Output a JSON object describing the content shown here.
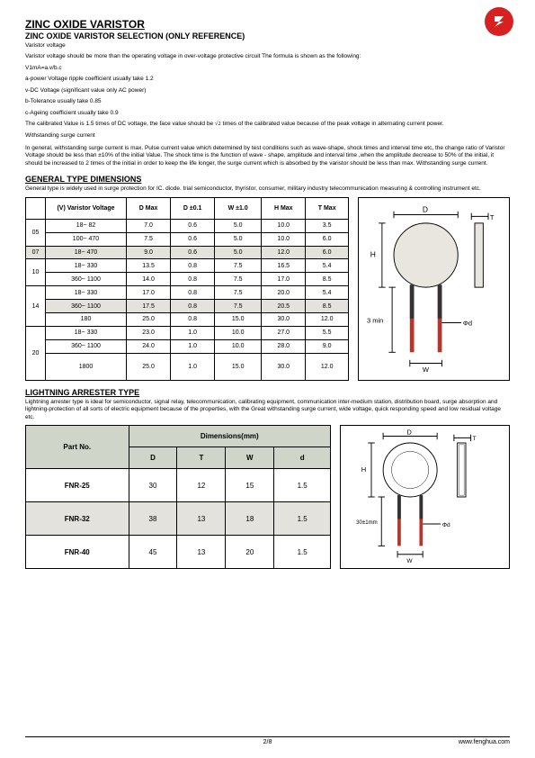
{
  "header": {
    "title": "ZINC OXIDE VARISTOR",
    "subtitle": "ZINC OXIDE VARISTOR SELECTION (ONLY REFERENCE)",
    "label1": "Varistor voltage"
  },
  "intro": {
    "p1": "Varistor voltage should be more than the operating voltage in over-voltage protective circuit The formula is shown as the following:",
    "formula": "V1mA=a.v/b.c",
    "l1": "a-power Voltage ripple coefficient usually take 1.2",
    "l2": "v-DC Voltage (significant value only AC power)",
    "l3": "b-Tolerance usually take 0.85",
    "l4": "c-Ageing coefficient usually take 0.9",
    "p2a": "The calibrated Value is 1.5 times of DC voltage, the face value should be ",
    "p2sqrt": "√2",
    "p2b": " times of the calibrated value because of the peak voltage in alternating current power.",
    "p3": "Withstanding surge current",
    "p4": "In general, withstanding surge current is max. Pulse current value which determined by test conditions such as wave-shape, shock times and interval time etc, the change ratio of Varistor Voltage should be less than ±10% of the initial Value. The shock time is the function of wave - shape, amplitude and interval time ,when the amplitude decrease to 50% of the initial, it should be increased to 2 times of the initial in order to keep the life longer, the surge current which is absorbed by the varistor should be less than max. Withstanding surge current."
  },
  "section1": {
    "title": "GENERAL TYPE DIMENSIONS",
    "desc": "General type is widely used in surge protection for IC. diode. trial semiconductor, thyristor, consumer, military industry telecommunication measuring & controlling instrument etc."
  },
  "table1": {
    "headers": [
      "(V) Varistor Voltage",
      "D Max",
      "D ±0.1",
      "W ±1.0",
      "H Max",
      "T Max"
    ],
    "groups": [
      {
        "label": "05",
        "rows": [
          {
            "v": "18~ 82",
            "d": "7.0",
            "dpm": "0.6",
            "w": "5.0",
            "h": "10.0",
            "t": "3.5"
          },
          {
            "v": "100~ 470",
            "d": "7.5",
            "dpm": "0.6",
            "w": "5.0",
            "h": "10.0",
            "t": "6.0"
          }
        ]
      },
      {
        "label": "07",
        "shade": true,
        "rows": [
          {
            "v": "18~ 470",
            "d": "9.0",
            "dpm": "0.6",
            "w": "5.0",
            "h": "12.0",
            "t": "6.0"
          }
        ]
      },
      {
        "label": "10",
        "rows": [
          {
            "v": "18~ 330",
            "d": "13.5",
            "dpm": "0.8",
            "w": "7.5",
            "h": "16.5",
            "t": "5.4"
          },
          {
            "v": "360~ 1100",
            "d": "14.0",
            "dpm": "0.8",
            "w": "7.5",
            "h": "17.0",
            "t": "8.5"
          }
        ]
      },
      {
        "label": "14",
        "rows": [
          {
            "v": "18~ 330",
            "d": "17.0",
            "dpm": "0.8",
            "w": "7.5",
            "h": "20.0",
            "t": "5.4"
          },
          {
            "v": "360~ 1100",
            "d": "17.5",
            "dpm": "0.8",
            "w": "7.5",
            "h": "20.5",
            "t": "8.5",
            "shade": true
          },
          {
            "v": "180",
            "d": "25.0",
            "dpm": "0.8",
            "w": "15.0",
            "h": "30.0",
            "t": "12.0"
          }
        ]
      },
      {
        "label": "20",
        "rows": [
          {
            "v": "18~ 330",
            "d": "23.0",
            "dpm": "1.0",
            "w": "10.0",
            "h": "27.0",
            "t": "5.5"
          },
          {
            "v": "360~ 1100",
            "d": "24.0",
            "dpm": "1.0",
            "w": "10.0",
            "h": "28.0",
            "t": "9.0"
          },
          {
            "v": "1800",
            "d": "25.0",
            "dpm": "1.0",
            "w": "15.0",
            "h": "30.0",
            "t": "12.0",
            "tall": true
          }
        ]
      }
    ]
  },
  "diagram1": {
    "D": "D",
    "T": "T",
    "H": "H",
    "lead": "3 min",
    "phi": "Φd",
    "W": "W",
    "colors": {
      "body": "#e8e6df",
      "coat": "#b5362b",
      "lead": "#333"
    }
  },
  "section2": {
    "title": "LIGHTNING ARRESTER TYPE",
    "desc": "Lightning arrester type is ideal for semiconductor, signal relay, telecommunication, calibrating equipment, communication inter-medium station, distribution board, surge absorption and lightning-protection of all sorts of electric equipment because of the properties, with the Great withstanding surge current, wide voltage, quick responding speed and low residual voltage etc."
  },
  "table2": {
    "pn_header": "Part No.",
    "dim_header": "Dimensions(mm)",
    "cols": [
      "D",
      "T",
      "W",
      "d"
    ],
    "rows": [
      {
        "pn": "FNR-25",
        "d": "30",
        "t": "12",
        "w": "15",
        "dd": "1.5"
      },
      {
        "pn": "FNR-32",
        "d": "38",
        "t": "13",
        "w": "18",
        "dd": "1.5",
        "shade": true
      },
      {
        "pn": "FNR-40",
        "d": "45",
        "t": "13",
        "w": "20",
        "dd": "1.5"
      }
    ]
  },
  "diagram2": {
    "D": "D",
    "T": "T",
    "H": "H",
    "lead": "30±1mm",
    "phi": "Φd",
    "W": "W"
  },
  "footer": {
    "url": "www.fenghua.com",
    "page": "2/8"
  }
}
